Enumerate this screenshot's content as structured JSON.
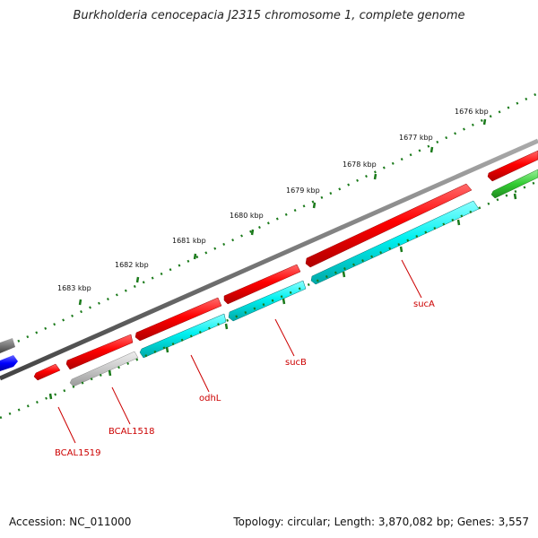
{
  "title": "Burkholderia cenocepacia J2315 chromosome 1, complete genome",
  "footer": {
    "accession": "Accession: NC_011000",
    "summary": "Topology: circular; Length: 3,870,082 bp; Genes: 3,557"
  },
  "ruler_labels": [
    "1676 kbp",
    "1677 kbp",
    "1678 kbp",
    "1679 kbp",
    "1680 kbp",
    "1681 kbp",
    "1682 kbp",
    "1683 kbp"
  ],
  "genes": [
    "sucA",
    "sucB",
    "odhL",
    "BCAL1518",
    "BCAL1519"
  ],
  "colors": {
    "forward_track": "#ff0000",
    "reverse_track": "#00e5e5",
    "grey_gene": "#c8c8c8",
    "blue_gene": "#0000ff",
    "green_gene": "#33cc33",
    "backbone": "#808080",
    "ruler_ticks": "#1a7a1a",
    "gene_label": "#cc0000"
  }
}
